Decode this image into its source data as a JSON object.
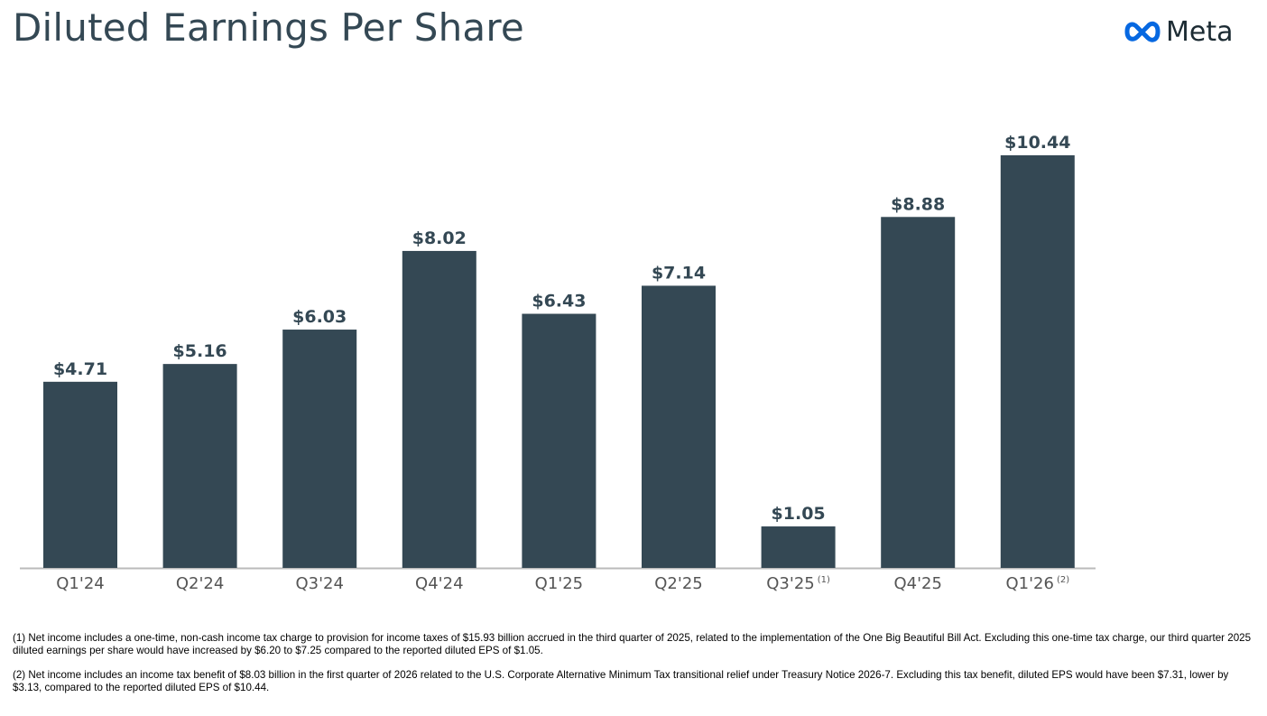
{
  "header": {
    "title": "Diluted Earnings Per Share",
    "logo_text": "Meta",
    "logo_icon": "meta-infinity-icon"
  },
  "colors": {
    "bar": "#344854",
    "label": "#344854",
    "axis_label": "#555555",
    "axis_line": "#bbbbbb",
    "logo_blue": "#0668e1"
  },
  "chart_data": {
    "type": "bar",
    "title": "Diluted Earnings Per Share",
    "xlabel": "",
    "ylabel": "",
    "ylim": [
      0,
      11.5
    ],
    "grid": false,
    "categories": [
      "Q1'24",
      "Q2'24",
      "Q3'24",
      "Q4'24",
      "Q1'25",
      "Q2'25",
      "Q3'25",
      "Q4'25",
      "Q1'26"
    ],
    "category_footnotes": [
      "",
      "",
      "",
      "",
      "",
      "",
      "(1)",
      "",
      "(2)"
    ],
    "values": [
      4.71,
      5.16,
      6.03,
      8.02,
      6.43,
      7.14,
      1.05,
      8.88,
      10.44
    ],
    "data_labels": [
      "$4.71",
      "$5.16",
      "$6.03",
      "$8.02",
      "$6.43",
      "$7.14",
      "$1.05",
      "$8.88",
      "$10.44"
    ]
  },
  "footnotes": [
    "(1) Net income includes a one-time, non-cash income tax charge to provision for income taxes of $15.93 billion accrued in the third quarter of 2025, related to the implementation of the One Big Beautiful Bill Act. Excluding this one-time tax charge, our third quarter 2025 diluted earnings per share would have increased by $6.20 to $7.25 compared to the reported diluted EPS of $1.05.",
    "(2) Net income includes an income tax benefit of $8.03 billion in the first quarter of 2026 related to the U.S. Corporate Alternative Minimum Tax transitional relief under Treasury Notice 2026-7. Excluding this tax benefit, diluted EPS would have been $7.31, lower by $3.13, compared to the reported diluted EPS of $10.44."
  ]
}
